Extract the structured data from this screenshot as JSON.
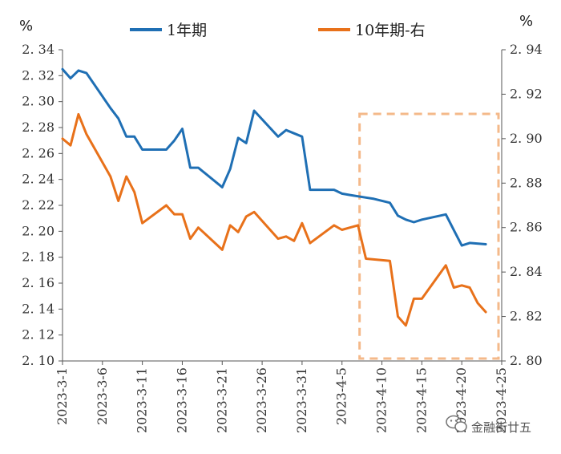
{
  "chart_data": {
    "type": "line",
    "left_unit": "%",
    "right_unit": "%",
    "y_left": {
      "min": 2.1,
      "max": 2.34,
      "step": 0.02,
      "ticks": [
        "2. 10",
        "2. 12",
        "2. 14",
        "2. 16",
        "2. 18",
        "2. 20",
        "2. 22",
        "2. 24",
        "2. 26",
        "2. 28",
        "2. 30",
        "2. 32",
        "2. 34"
      ]
    },
    "y_right": {
      "min": 2.8,
      "max": 2.94,
      "step": 0.02,
      "ticks": [
        "2. 80",
        "2. 82",
        "2. 84",
        "2. 86",
        "2. 88",
        "2. 90",
        "2. 92",
        "2. 94"
      ]
    },
    "x_axis": {
      "range": [
        "2023-3-1",
        "2023-4-25"
      ],
      "tick_labels": [
        "2023-3-1",
        "2023-3-6",
        "2023-3-11",
        "2023-3-16",
        "2023-3-21",
        "2023-3-26",
        "2023-3-31",
        "2023-4-5",
        "2023-4-10",
        "2023-4-15",
        "2023-4-20",
        "2023-4-25"
      ],
      "tick_days": [
        0,
        5,
        10,
        15,
        20,
        25,
        30,
        35,
        40,
        45,
        50,
        55
      ]
    },
    "series": [
      {
        "name": "1年期",
        "axis": "left",
        "color": "#1f6fb4",
        "x": [
          0,
          1,
          2,
          3,
          6,
          7,
          8,
          9,
          10,
          13,
          14,
          15,
          16,
          17,
          20,
          21,
          22,
          23,
          24,
          27,
          28,
          30,
          31,
          34,
          35,
          36,
          38,
          39,
          41,
          42,
          43,
          44,
          45,
          48,
          49,
          50,
          51,
          53
        ],
        "values": [
          2.325,
          2.318,
          2.324,
          2.322,
          2.295,
          2.287,
          2.273,
          2.273,
          2.263,
          2.263,
          2.27,
          2.279,
          2.249,
          2.249,
          2.234,
          2.248,
          2.272,
          2.268,
          2.293,
          2.273,
          2.278,
          2.273,
          2.232,
          2.232,
          2.229,
          2.228,
          2.226,
          2.225,
          2.222,
          2.212,
          2.209,
          2.207,
          2.209,
          2.213,
          2.201,
          2.189,
          2.191,
          2.19
        ]
      },
      {
        "name": "10年期-右",
        "axis": "right",
        "color": "#e8711a",
        "x": [
          0,
          1,
          2,
          3,
          6,
          7,
          8,
          9,
          10,
          13,
          14,
          15,
          16,
          17,
          20,
          21,
          22,
          23,
          24,
          27,
          28,
          29,
          30,
          31,
          34,
          35,
          36,
          37,
          38,
          41,
          42,
          43,
          44,
          45,
          48,
          49,
          50,
          51,
          52,
          53
        ],
        "values": [
          2.9,
          2.897,
          2.911,
          2.902,
          2.883,
          2.872,
          2.883,
          2.876,
          2.862,
          2.87,
          2.866,
          2.866,
          2.855,
          2.86,
          2.85,
          2.861,
          2.858,
          2.865,
          2.867,
          2.855,
          2.856,
          2.854,
          2.862,
          2.853,
          2.861,
          2.859,
          2.86,
          2.861,
          2.846,
          2.845,
          2.82,
          2.816,
          2.828,
          2.828,
          2.843,
          2.833,
          2.834,
          2.833,
          2.826,
          2.822
        ]
      }
    ],
    "highlight": {
      "from_day": 37,
      "to_day": 55,
      "style": "dashed box"
    },
    "grid": false,
    "legend_position": "top"
  },
  "watermark": {
    "text": "金融街廿五",
    "icon": "wechat-icon"
  }
}
